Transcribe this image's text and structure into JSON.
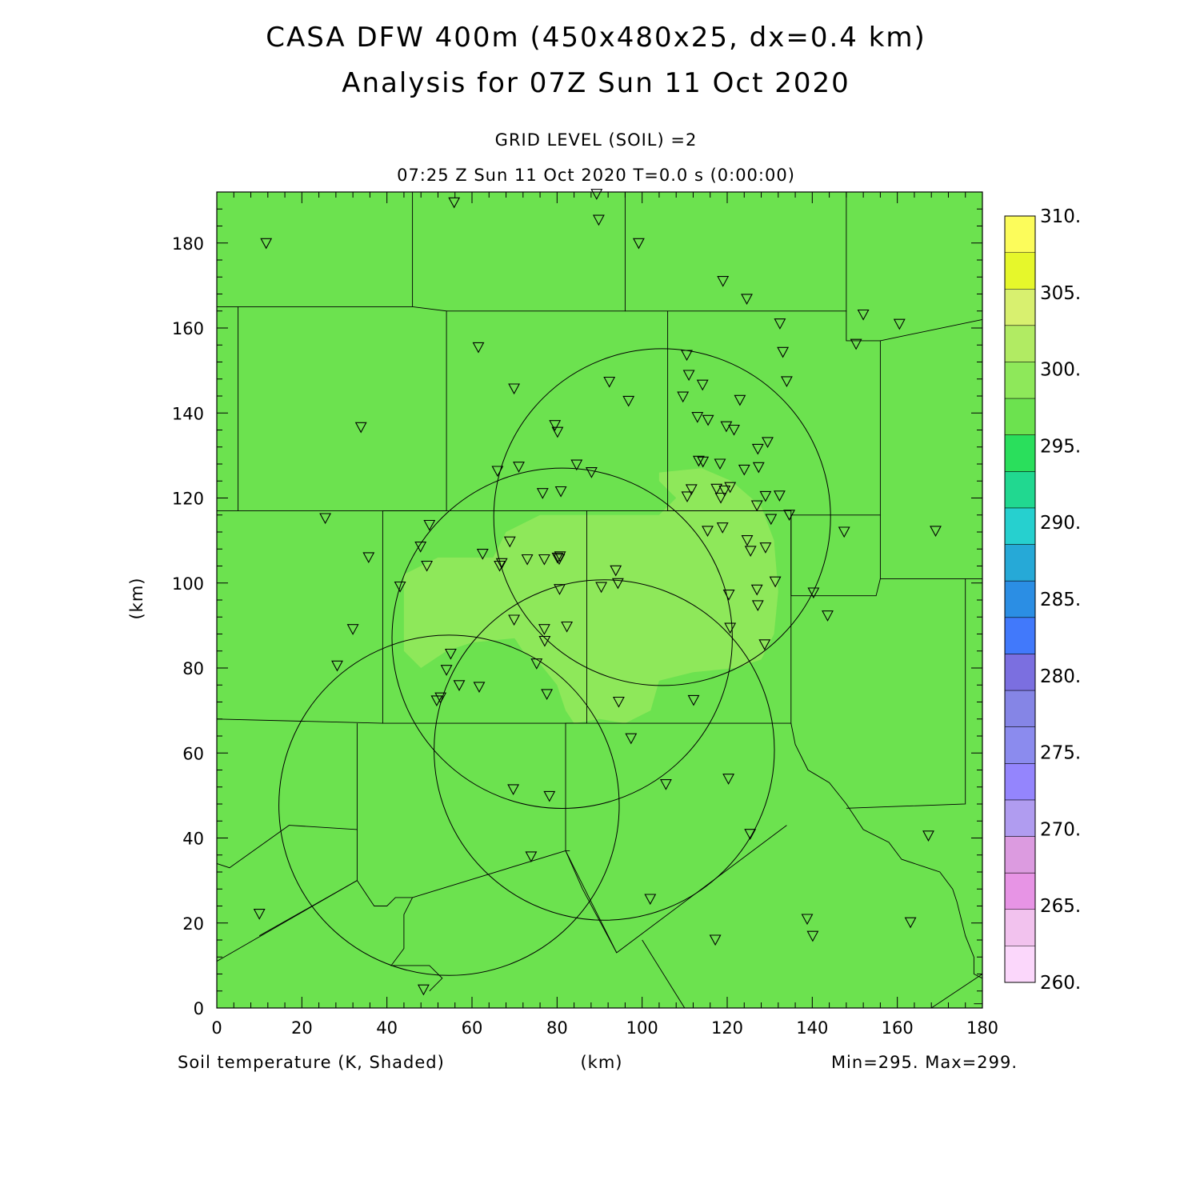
{
  "header": {
    "title_line1": "CASA DFW 400m (450x480x25, dx=0.4 km)",
    "title_line2": "Analysis for 07Z Sun 11 Oct 2020",
    "level_label": "GRID LEVEL (SOIL) =2",
    "time_label": "07:25 Z Sun 11 Oct 2020   T=0.0 s (0:00:00)"
  },
  "footer": {
    "field_label": "Soil temperature (K, Shaded)",
    "xunit_label": "(km)",
    "minmax_label": "Min=295. Max=299."
  },
  "colors": {
    "field_main": "#6ce24f",
    "field_warm": "#8ee85a",
    "outline": "#000000"
  },
  "chart_data": {
    "type": "heatmap",
    "xlabel": "(km)",
    "ylabel": "(km)",
    "xlim": [
      0,
      180
    ],
    "ylim": [
      0,
      192
    ],
    "xticks": [
      0,
      20,
      40,
      60,
      80,
      100,
      120,
      140,
      160,
      180
    ],
    "yticks": [
      0,
      20,
      40,
      60,
      80,
      100,
      120,
      140,
      160,
      180
    ],
    "field_min": 295,
    "field_max": 299,
    "colorbar": {
      "levels": [
        260,
        265,
        270,
        275,
        280,
        285,
        290,
        295,
        300,
        305,
        310
      ],
      "labels": [
        "260.",
        "265.",
        "270.",
        "275.",
        "280.",
        "285.",
        "290.",
        "295.",
        "300.",
        "305.",
        "310."
      ],
      "colors": [
        "#fbd7fb",
        "#f2c2ee",
        "#e794e5",
        "#dc9be0",
        "#b09cf0",
        "#9485fd",
        "#8b8bee",
        "#8585e6",
        "#7b6fe0",
        "#4179fb",
        "#2b8ee4",
        "#26a9d7",
        "#26d0cf",
        "#21d890",
        "#2adf5c",
        "#6ce24f",
        "#8ee85a",
        "#b1eb63",
        "#d8f06f",
        "#e6f72b",
        "#fcfc5b"
      ]
    },
    "warm_region": [
      [
        44,
        102
      ],
      [
        52,
        106
      ],
      [
        65,
        106
      ],
      [
        68,
        112
      ],
      [
        76,
        116
      ],
      [
        90,
        116
      ],
      [
        104,
        116
      ],
      [
        108,
        120
      ],
      [
        104,
        124
      ],
      [
        104,
        126
      ],
      [
        114,
        127
      ],
      [
        121,
        124
      ],
      [
        128,
        118
      ],
      [
        131,
        110
      ],
      [
        132,
        98
      ],
      [
        131,
        88
      ],
      [
        128,
        82
      ],
      [
        122,
        80
      ],
      [
        112,
        79
      ],
      [
        104,
        77
      ],
      [
        102,
        70
      ],
      [
        96,
        67
      ],
      [
        90,
        68
      ],
      [
        84,
        67
      ],
      [
        82,
        70
      ],
      [
        80,
        76
      ],
      [
        76,
        81
      ],
      [
        72,
        84
      ],
      [
        70,
        87
      ],
      [
        60,
        86
      ],
      [
        54,
        84
      ],
      [
        48,
        80
      ],
      [
        44,
        84
      ],
      [
        44,
        92
      ]
    ],
    "radar_circles": [
      {
        "cx": 104.7,
        "cy": 115.5,
        "r": 39.6
      },
      {
        "cx": 81.2,
        "cy": 87.0,
        "r": 40.0
      },
      {
        "cx": 91.1,
        "cy": 60.7,
        "r": 40.0
      },
      {
        "cx": 54.6,
        "cy": 47.7,
        "r": 40.0
      }
    ],
    "boundaries": [
      [
        [
          0,
          165
        ],
        [
          5,
          165
        ]
      ],
      [
        [
          5,
          165
        ],
        [
          46,
          165
        ],
        [
          54,
          164
        ],
        [
          54,
          117
        ],
        [
          5,
          117
        ],
        [
          5,
          165
        ]
      ],
      [
        [
          46,
          165
        ],
        [
          46,
          192
        ]
      ],
      [
        [
          54,
          164
        ],
        [
          96,
          164
        ],
        [
          96,
          165
        ],
        [
          96,
          192
        ]
      ],
      [
        [
          96,
          164
        ],
        [
          106,
          164
        ],
        [
          106,
          117
        ],
        [
          135,
          117
        ]
      ],
      [
        [
          106,
          164
        ],
        [
          148,
          164
        ],
        [
          148,
          192
        ]
      ],
      [
        [
          148,
          164
        ],
        [
          148,
          157
        ],
        [
          156,
          157
        ],
        [
          156,
          116
        ],
        [
          135,
          116
        ],
        [
          135,
          97
        ]
      ],
      [
        [
          156,
          157
        ],
        [
          180,
          162
        ]
      ],
      [
        [
          156,
          116
        ],
        [
          156,
          101
        ],
        [
          180,
          101
        ]
      ],
      [
        [
          0,
          117
        ],
        [
          5,
          117
        ]
      ],
      [
        [
          54,
          117
        ],
        [
          39,
          117
        ],
        [
          39,
          67
        ],
        [
          0,
          68
        ]
      ],
      [
        [
          39,
          117
        ],
        [
          87,
          117
        ],
        [
          87,
          67
        ],
        [
          39,
          67
        ]
      ],
      [
        [
          87,
          117
        ],
        [
          135,
          117
        ],
        [
          135,
          67
        ],
        [
          87,
          67
        ]
      ],
      [
        [
          135,
          97
        ],
        [
          155,
          97
        ],
        [
          156,
          101
        ]
      ],
      [
        [
          87,
          67
        ],
        [
          82,
          67
        ],
        [
          82,
          37
        ],
        [
          83,
          37
        ]
      ],
      [
        [
          33,
          67
        ],
        [
          33,
          42
        ],
        [
          17,
          43
        ],
        [
          3,
          33
        ],
        [
          0,
          34
        ]
      ],
      [
        [
          33,
          42
        ],
        [
          33,
          30
        ],
        [
          10,
          17
        ]
      ],
      [
        [
          0,
          11
        ],
        [
          33,
          30
        ],
        [
          37,
          24
        ],
        [
          40,
          24
        ],
        [
          42,
          26
        ],
        [
          45,
          26
        ],
        [
          46,
          26
        ],
        [
          82,
          37
        ],
        [
          94,
          13
        ],
        [
          134,
          43
        ]
      ],
      [
        [
          135,
          67
        ],
        [
          136,
          62
        ],
        [
          139,
          56
        ],
        [
          144,
          53
        ],
        [
          148,
          48
        ],
        [
          150,
          45
        ],
        [
          152,
          42
        ],
        [
          158,
          39
        ],
        [
          161,
          35
        ],
        [
          167,
          33
        ],
        [
          170,
          32
        ],
        [
          173,
          28
        ],
        [
          174,
          25
        ],
        [
          175,
          21
        ],
        [
          176,
          17
        ],
        [
          178,
          12
        ],
        [
          178,
          8
        ],
        [
          180,
          7
        ]
      ],
      [
        [
          148,
          47
        ],
        [
          176,
          48
        ],
        [
          176,
          101
        ]
      ],
      [
        [
          46,
          26
        ],
        [
          44,
          22
        ],
        [
          44,
          14
        ],
        [
          41,
          10
        ],
        [
          50,
          10
        ],
        [
          53,
          7
        ],
        [
          50,
          4
        ]
      ],
      [
        [
          82,
          37
        ],
        [
          86,
          28
        ],
        [
          94,
          13
        ]
      ],
      [
        [
          100,
          16
        ],
        [
          110,
          0
        ]
      ],
      [
        [
          168,
          0
        ],
        [
          180,
          8
        ]
      ],
      [
        [
          178,
          1
        ],
        [
          180,
          1
        ]
      ]
    ],
    "stations": [
      [
        11.6,
        179.9
      ],
      [
        55.8,
        189.5
      ],
      [
        89.3,
        191.5
      ],
      [
        89.8,
        185.4
      ],
      [
        99.2,
        179.9
      ],
      [
        119.0,
        171.0
      ],
      [
        124.6,
        166.8
      ],
      [
        132.4,
        161.0
      ],
      [
        152.0,
        163.1
      ],
      [
        160.5,
        160.9
      ],
      [
        150.3,
        156.2
      ],
      [
        61.5,
        155.4
      ],
      [
        110.5,
        153.6
      ],
      [
        133.1,
        154.3
      ],
      [
        111.0,
        148.9
      ],
      [
        114.2,
        146.6
      ],
      [
        92.3,
        147.3
      ],
      [
        69.9,
        145.7
      ],
      [
        96.8,
        142.8
      ],
      [
        109.6,
        143.8
      ],
      [
        123.0,
        143.0
      ],
      [
        134.0,
        147.4
      ],
      [
        33.9,
        136.6
      ],
      [
        79.5,
        137.1
      ],
      [
        113.0,
        139.0
      ],
      [
        115.5,
        138.3
      ],
      [
        119.8,
        136.8
      ],
      [
        121.6,
        136.0
      ],
      [
        80.1,
        135.5
      ],
      [
        127.2,
        131.5
      ],
      [
        129.5,
        133.1
      ],
      [
        113.3,
        128.7
      ],
      [
        114.3,
        128.5
      ],
      [
        118.3,
        128.0
      ],
      [
        84.6,
        127.8
      ],
      [
        71.0,
        127.3
      ],
      [
        66.0,
        126.3
      ],
      [
        88.1,
        126.0
      ],
      [
        124.0,
        126.6
      ],
      [
        127.4,
        127.2
      ],
      [
        76.6,
        121.1
      ],
      [
        80.9,
        121.5
      ],
      [
        111.6,
        122.0
      ],
      [
        117.5,
        122.1
      ],
      [
        119.4,
        121.7
      ],
      [
        120.7,
        122.5
      ],
      [
        110.6,
        120.3
      ],
      [
        118.5,
        120.0
      ],
      [
        129.0,
        120.4
      ],
      [
        132.3,
        120.5
      ],
      [
        127.0,
        118.2
      ],
      [
        130.3,
        115.0
      ],
      [
        134.6,
        116.0
      ],
      [
        25.5,
        115.2
      ],
      [
        50.0,
        113.6
      ],
      [
        115.4,
        112.2
      ],
      [
        118.9,
        113.0
      ],
      [
        147.5,
        112.0
      ],
      [
        169.0,
        112.2
      ],
      [
        124.7,
        110.0
      ],
      [
        68.9,
        109.7
      ],
      [
        125.5,
        107.5
      ],
      [
        129.0,
        108.3
      ],
      [
        62.5,
        106.8
      ],
      [
        35.7,
        106.0
      ],
      [
        47.9,
        108.5
      ],
      [
        73.0,
        105.5
      ],
      [
        77.0,
        105.5
      ],
      [
        80.1,
        105.9
      ],
      [
        80.7,
        106.2
      ],
      [
        80.5,
        105.6
      ],
      [
        67.0,
        104.6
      ],
      [
        66.5,
        104.0
      ],
      [
        49.4,
        104.0
      ],
      [
        93.8,
        102.9
      ],
      [
        94.3,
        99.9
      ],
      [
        43.1,
        99.1
      ],
      [
        90.4,
        99.0
      ],
      [
        80.6,
        98.5
      ],
      [
        131.3,
        100.3
      ],
      [
        127.0,
        98.4
      ],
      [
        120.4,
        97.2
      ],
      [
        140.3,
        97.7
      ],
      [
        127.2,
        94.7
      ],
      [
        143.6,
        92.3
      ],
      [
        69.9,
        91.3
      ],
      [
        32.0,
        89.1
      ],
      [
        77.0,
        89.1
      ],
      [
        82.3,
        89.7
      ],
      [
        120.7,
        89.4
      ],
      [
        77.1,
        86.3
      ],
      [
        28.3,
        80.5
      ],
      [
        55.0,
        83.3
      ],
      [
        75.2,
        81.0
      ],
      [
        128.8,
        85.5
      ],
      [
        54.0,
        79.5
      ],
      [
        57.0,
        75.9
      ],
      [
        61.7,
        75.5
      ],
      [
        77.6,
        73.8
      ],
      [
        52.6,
        73.0
      ],
      [
        51.7,
        72.3
      ],
      [
        94.5,
        72.0
      ],
      [
        112.1,
        72.4
      ],
      [
        97.4,
        63.4
      ],
      [
        120.3,
        53.9
      ],
      [
        105.6,
        52.6
      ],
      [
        69.7,
        51.4
      ],
      [
        78.2,
        49.8
      ],
      [
        125.4,
        40.9
      ],
      [
        167.3,
        40.5
      ],
      [
        73.9,
        35.6
      ],
      [
        10.0,
        22.1
      ],
      [
        101.9,
        25.6
      ],
      [
        138.8,
        20.9
      ],
      [
        163.1,
        20.1
      ],
      [
        117.2,
        16.0
      ],
      [
        140.1,
        16.9
      ],
      [
        48.6,
        4.3
      ]
    ]
  }
}
